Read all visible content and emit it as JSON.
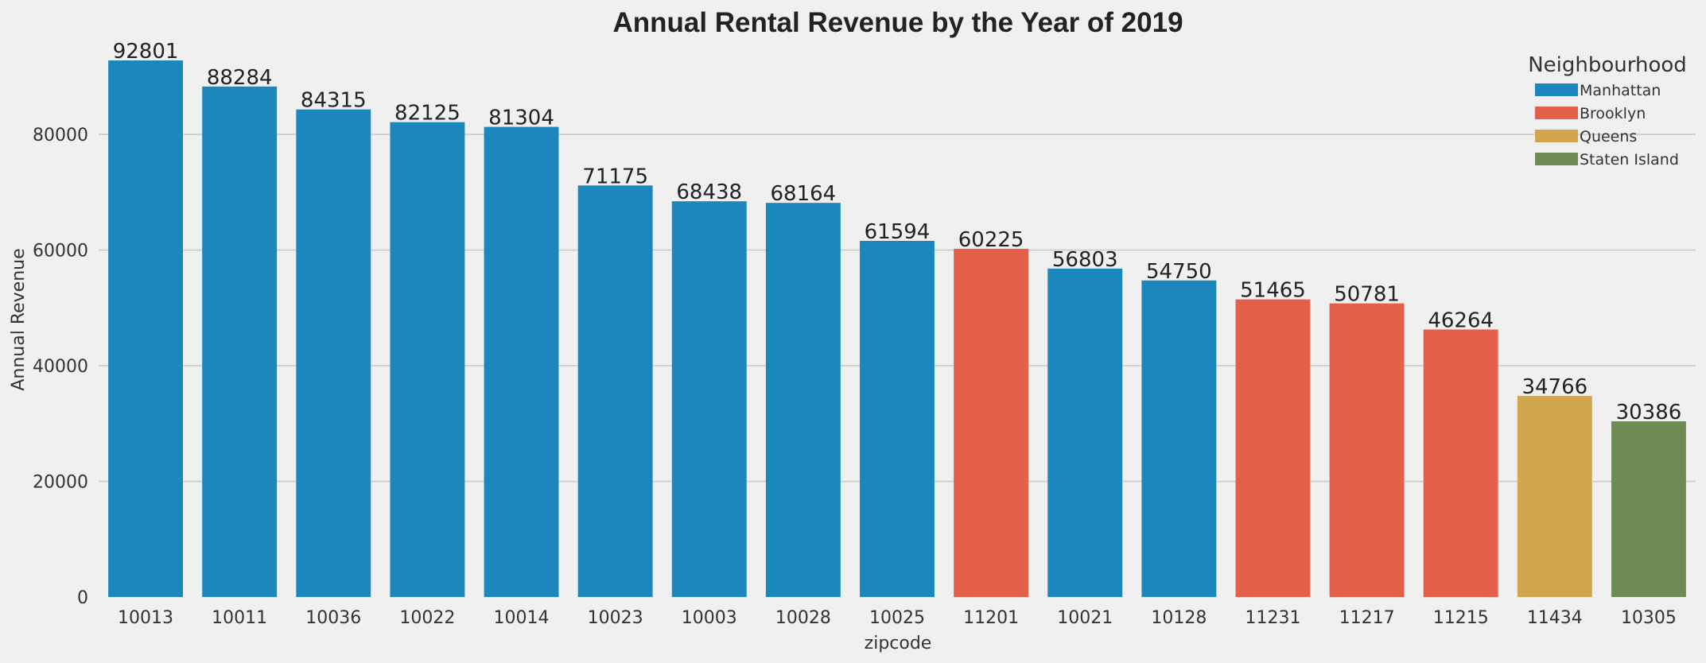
{
  "chart_data": {
    "type": "bar",
    "title": "Annual Rental Revenue by the Year of 2019",
    "xlabel": "zipcode",
    "ylabel": "Annual Revenue",
    "ylim": [
      0,
      95000
    ],
    "yticks": [
      0,
      20000,
      40000,
      60000,
      80000
    ],
    "grid": "horizontal",
    "legend": {
      "title": "Neighbourhood",
      "position": "top-right",
      "entries": [
        {
          "name": "Manhattan",
          "color": "#1b87bc"
        },
        {
          "name": "Brooklyn",
          "color": "#e5604a"
        },
        {
          "name": "Queens",
          "color": "#d1a64d"
        },
        {
          "name": "Staten Island",
          "color": "#6e8b55"
        }
      ]
    },
    "categories": [
      "10013",
      "10011",
      "10036",
      "10022",
      "10014",
      "10023",
      "10003",
      "10028",
      "10025",
      "11201",
      "10021",
      "10128",
      "11231",
      "11217",
      "11215",
      "11434",
      "10305"
    ],
    "values": [
      92801,
      88284,
      84315,
      82125,
      81304,
      71175,
      68438,
      68164,
      61594,
      60225,
      56803,
      54750,
      51465,
      50781,
      46264,
      34766,
      30386
    ],
    "groups": [
      "Manhattan",
      "Manhattan",
      "Manhattan",
      "Manhattan",
      "Manhattan",
      "Manhattan",
      "Manhattan",
      "Manhattan",
      "Manhattan",
      "Brooklyn",
      "Manhattan",
      "Manhattan",
      "Brooklyn",
      "Brooklyn",
      "Brooklyn",
      "Queens",
      "Staten Island"
    ]
  }
}
